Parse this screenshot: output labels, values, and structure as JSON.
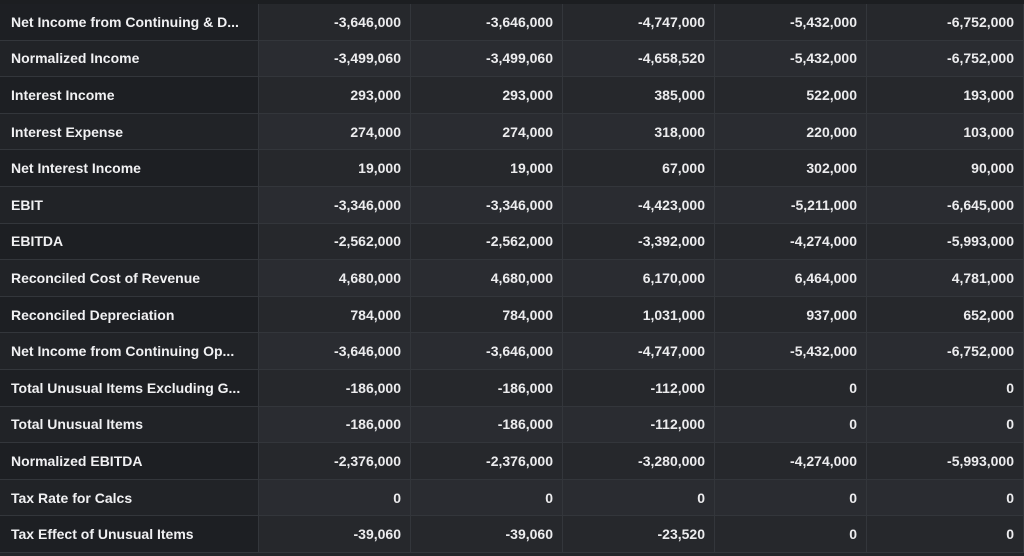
{
  "rows": [
    {
      "label": "Net Income from Continuing & D...",
      "values": [
        "-3,646,000",
        "-3,646,000",
        "-4,747,000",
        "-5,432,000",
        "-6,752,000"
      ]
    },
    {
      "label": "Normalized Income",
      "values": [
        "-3,499,060",
        "-3,499,060",
        "-4,658,520",
        "-5,432,000",
        "-6,752,000"
      ]
    },
    {
      "label": "Interest Income",
      "values": [
        "293,000",
        "293,000",
        "385,000",
        "522,000",
        "193,000"
      ]
    },
    {
      "label": "Interest Expense",
      "values": [
        "274,000",
        "274,000",
        "318,000",
        "220,000",
        "103,000"
      ]
    },
    {
      "label": "Net Interest Income",
      "values": [
        "19,000",
        "19,000",
        "67,000",
        "302,000",
        "90,000"
      ]
    },
    {
      "label": "EBIT",
      "values": [
        "-3,346,000",
        "-3,346,000",
        "-4,423,000",
        "-5,211,000",
        "-6,645,000"
      ]
    },
    {
      "label": "EBITDA",
      "values": [
        "-2,562,000",
        "-2,562,000",
        "-3,392,000",
        "-4,274,000",
        "-5,993,000"
      ]
    },
    {
      "label": "Reconciled Cost of Revenue",
      "values": [
        "4,680,000",
        "4,680,000",
        "6,170,000",
        "6,464,000",
        "4,781,000"
      ]
    },
    {
      "label": "Reconciled Depreciation",
      "values": [
        "784,000",
        "784,000",
        "1,031,000",
        "937,000",
        "652,000"
      ]
    },
    {
      "label": "Net Income from Continuing Op...",
      "values": [
        "-3,646,000",
        "-3,646,000",
        "-4,747,000",
        "-5,432,000",
        "-6,752,000"
      ]
    },
    {
      "label": "Total Unusual Items Excluding G...",
      "values": [
        "-186,000",
        "-186,000",
        "-112,000",
        "0",
        "0"
      ]
    },
    {
      "label": "Total Unusual Items",
      "values": [
        "-186,000",
        "-186,000",
        "-112,000",
        "0",
        "0"
      ]
    },
    {
      "label": "Normalized EBITDA",
      "values": [
        "-2,376,000",
        "-2,376,000",
        "-3,280,000",
        "-4,274,000",
        "-5,993,000"
      ]
    },
    {
      "label": "Tax Rate for Calcs",
      "values": [
        "0",
        "0",
        "0",
        "0",
        "0"
      ]
    },
    {
      "label": "Tax Effect of Unusual Items",
      "values": [
        "-39,060",
        "-39,060",
        "-23,520",
        "0",
        "0"
      ]
    }
  ]
}
